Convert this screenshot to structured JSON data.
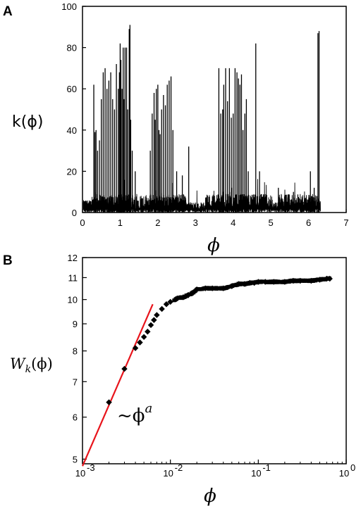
{
  "chart_data": [
    {
      "panel": "A",
      "type": "line",
      "xlabel": "ϕ",
      "ylabel": "k(ϕ)",
      "xlim": [
        0,
        7
      ],
      "ylim": [
        0,
        100
      ],
      "xticks": [
        "0",
        "1",
        "2",
        "3",
        "4",
        "5",
        "6",
        "7"
      ],
      "yticks": [
        "0",
        "20",
        "40",
        "60",
        "80",
        "100"
      ],
      "series": [
        {
          "spikes": [
            [
              0.3,
              62
            ],
            [
              0.33,
              39
            ],
            [
              0.36,
              40
            ],
            [
              0.4,
              30
            ],
            [
              0.45,
              35
            ],
            [
              0.5,
              55
            ],
            [
              0.55,
              68
            ],
            [
              0.6,
              70
            ],
            [
              0.65,
              60
            ],
            [
              0.7,
              64
            ],
            [
              0.75,
              68
            ],
            [
              0.8,
              55
            ],
            [
              0.85,
              50
            ],
            [
              0.9,
              72
            ],
            [
              0.95,
              60
            ],
            [
              0.98,
              68
            ],
            [
              1.0,
              82
            ],
            [
              1.02,
              74
            ],
            [
              1.05,
              60
            ],
            [
              1.08,
              80
            ],
            [
              1.1,
              55
            ],
            [
              1.13,
              80
            ],
            [
              1.17,
              80
            ],
            [
              1.2,
              50
            ],
            [
              1.24,
              89
            ],
            [
              1.26,
              91
            ],
            [
              1.28,
              45
            ],
            [
              1.32,
              30
            ],
            [
              1.4,
              20
            ],
            [
              1.8,
              30
            ],
            [
              1.85,
              48
            ],
            [
              1.9,
              58
            ],
            [
              1.93,
              45
            ],
            [
              1.96,
              60
            ],
            [
              2.0,
              62
            ],
            [
              2.03,
              40
            ],
            [
              2.06,
              38
            ],
            [
              2.1,
              50
            ],
            [
              2.15,
              57
            ],
            [
              2.2,
              52
            ],
            [
              2.25,
              62
            ],
            [
              2.3,
              64
            ],
            [
              2.35,
              66
            ],
            [
              2.4,
              40
            ],
            [
              2.5,
              20
            ],
            [
              2.65,
              18
            ],
            [
              2.82,
              32
            ],
            [
              3.62,
              70
            ],
            [
              3.67,
              48
            ],
            [
              3.72,
              50
            ],
            [
              3.75,
              62
            ],
            [
              3.8,
              70
            ],
            [
              3.85,
              54
            ],
            [
              3.9,
              70
            ],
            [
              3.95,
              46
            ],
            [
              4.0,
              48
            ],
            [
              4.05,
              70
            ],
            [
              4.1,
              68
            ],
            [
              4.14,
              65
            ],
            [
              4.18,
              62
            ],
            [
              4.22,
              67
            ],
            [
              4.26,
              40
            ],
            [
              4.31,
              48
            ],
            [
              4.35,
              55
            ],
            [
              4.4,
              20
            ],
            [
              4.6,
              82
            ],
            [
              4.7,
              20
            ],
            [
              5.2,
              12
            ],
            [
              5.6,
              10
            ],
            [
              6.05,
              20
            ],
            [
              6.15,
              12
            ],
            [
              6.22,
              8
            ],
            [
              6.25,
              87
            ],
            [
              6.28,
              88
            ]
          ]
        }
      ]
    },
    {
      "panel": "B",
      "type": "scatter",
      "xlabel": "ϕ",
      "ylabel": "W_k(ϕ)",
      "xscale": "log",
      "yscale": "log",
      "xlim": [
        0.001,
        1
      ],
      "ylim": [
        4.9,
        12
      ],
      "xticks": [
        "10",
        "10",
        "10",
        "10"
      ],
      "xtick_exponents": [
        "-3",
        "-2",
        "-1",
        "0"
      ],
      "yticks": [
        "5",
        "6",
        "7",
        "8",
        "9",
        "10",
        "11",
        "12"
      ],
      "annotation": "~ϕ",
      "annotation_exponent": "a",
      "fit_line": {
        "color": "#e8141b",
        "x": [
          0.001,
          0.0063
        ],
        "y": [
          4.85,
          9.8
        ]
      },
      "series": [
        {
          "x": [
            0.002,
            0.003,
            0.004,
            0.0045,
            0.005,
            0.0055,
            0.006,
            0.0065,
            0.007,
            0.008,
            0.009,
            0.01,
            0.012,
            0.014,
            0.016,
            0.018,
            0.02,
            0.025,
            0.03,
            0.04,
            0.05,
            0.06,
            0.07,
            0.08,
            0.09,
            0.1,
            0.12,
            0.15,
            0.2,
            0.25,
            0.3,
            0.4,
            0.5,
            0.6,
            0.65
          ],
          "y": [
            6.4,
            7.4,
            8.1,
            8.3,
            8.5,
            8.7,
            8.95,
            9.15,
            9.35,
            9.6,
            9.8,
            9.9,
            10.05,
            10.1,
            10.2,
            10.3,
            10.45,
            10.5,
            10.5,
            10.5,
            10.6,
            10.7,
            10.7,
            10.75,
            10.75,
            10.8,
            10.8,
            10.8,
            10.8,
            10.85,
            10.85,
            10.85,
            10.9,
            10.95,
            10.95
          ]
        }
      ]
    }
  ]
}
